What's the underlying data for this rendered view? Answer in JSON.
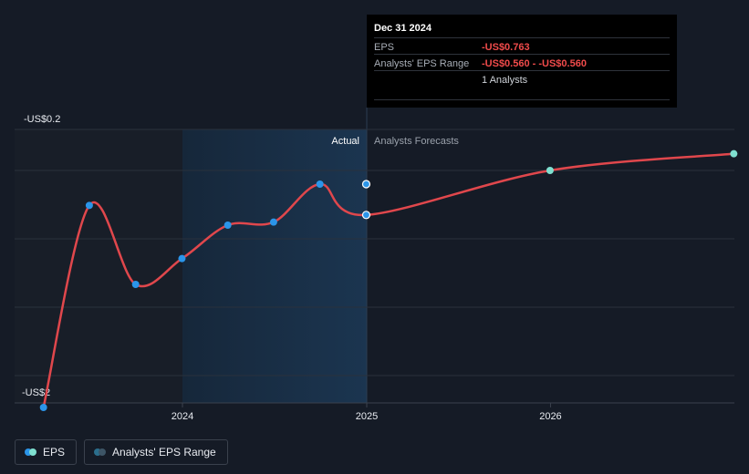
{
  "chart_data": {
    "type": "line",
    "title": "",
    "xlabel": "",
    "ylabel": "",
    "x_ticks": [
      "2024",
      "2025",
      "2026"
    ],
    "y_axis_labels": {
      "top": "-US$0.2",
      "bottom": "-US$2"
    },
    "region_labels": {
      "actual": "Actual",
      "forecast": "Analysts Forecasts"
    },
    "series": [
      {
        "name": "EPS",
        "kind": "actual",
        "x": [
          "2023-03-31",
          "2023-06-30",
          "2023-09-30",
          "2023-12-31",
          "2024-03-31",
          "2024-06-30",
          "2024-09-30",
          "2024-12-31"
        ],
        "y": [
          -2.03,
          -0.7,
          -1.22,
          -1.05,
          -0.83,
          -0.81,
          -0.56,
          -0.763
        ]
      },
      {
        "name": "EPS forecast",
        "kind": "forecast",
        "x": [
          "2024-12-31",
          "2025-12-31",
          "2026-12-31"
        ],
        "y": [
          -0.763,
          -0.47,
          -0.36
        ]
      },
      {
        "name": "Analysts' EPS Range",
        "kind": "range",
        "x": [
          "2024-12-31"
        ],
        "low": [
          -0.56
        ],
        "high": [
          -0.56
        ]
      }
    ],
    "colors": {
      "line": "#e0474c",
      "actual_point": "#2b95e9",
      "forecast_point": "#7fe0d0",
      "range_point": "#2b95e9",
      "highlight_band": "#1a3147",
      "past_band": "#181e28"
    }
  },
  "tooltip": {
    "date": "Dec 31 2024",
    "rows": [
      {
        "key": "EPS",
        "value": "-US$0.763"
      },
      {
        "key": "Analysts' EPS Range",
        "value": "-US$0.560 - -US$0.560"
      },
      {
        "key": "",
        "value": "1 Analysts"
      }
    ]
  },
  "legend": [
    {
      "label": "EPS",
      "color1": "#2b95e9",
      "color2": "#7fe0d0"
    },
    {
      "label": "Analysts' EPS Range",
      "color1": "#2b6e8c",
      "color2": "#3d5566"
    }
  ]
}
